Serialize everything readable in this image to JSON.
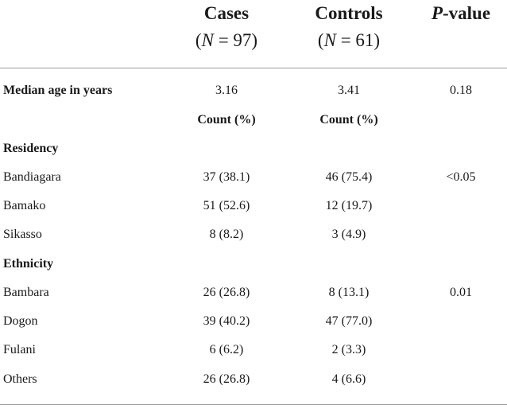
{
  "header": {
    "cases": {
      "title": "Cases",
      "n_prefix": "(",
      "n_var": "N",
      "n_eq": " = 97)"
    },
    "controls": {
      "title": "Controls",
      "n_prefix": "(",
      "n_var": "N",
      "n_eq": " = 61)"
    },
    "pvalue": {
      "p": "P",
      "rest": "-value"
    }
  },
  "median_row": {
    "label": "Median age in years",
    "cases": "3.16",
    "controls": "3.41",
    "p": "0.18"
  },
  "count_row": {
    "cases": "Count (%)",
    "controls": "Count (%)"
  },
  "sections": [
    {
      "title": "Residency",
      "rows": [
        {
          "label": "Bandiagara",
          "cases": "37 (38.1)",
          "controls": "46 (75.4)",
          "p": "<0.05"
        },
        {
          "label": "Bamako",
          "cases": "51 (52.6)",
          "controls": "12 (19.7)",
          "p": ""
        },
        {
          "label": "Sikasso",
          "cases": "8 (8.2)",
          "controls": "3 (4.9)",
          "p": ""
        }
      ]
    },
    {
      "title": "Ethnicity",
      "rows": [
        {
          "label": "Bambara",
          "cases": "26 (26.8)",
          "controls": "8 (13.1)",
          "p": "0.01"
        },
        {
          "label": "Dogon",
          "cases": "39 (40.2)",
          "controls": "47 (77.0)",
          "p": ""
        },
        {
          "label": "Fulani",
          "cases": "6 (6.2)",
          "controls": "2 (3.3)",
          "p": ""
        },
        {
          "label": "Others",
          "cases": "26 (26.8)",
          "controls": "4 (6.6)",
          "p": ""
        }
      ]
    }
  ]
}
